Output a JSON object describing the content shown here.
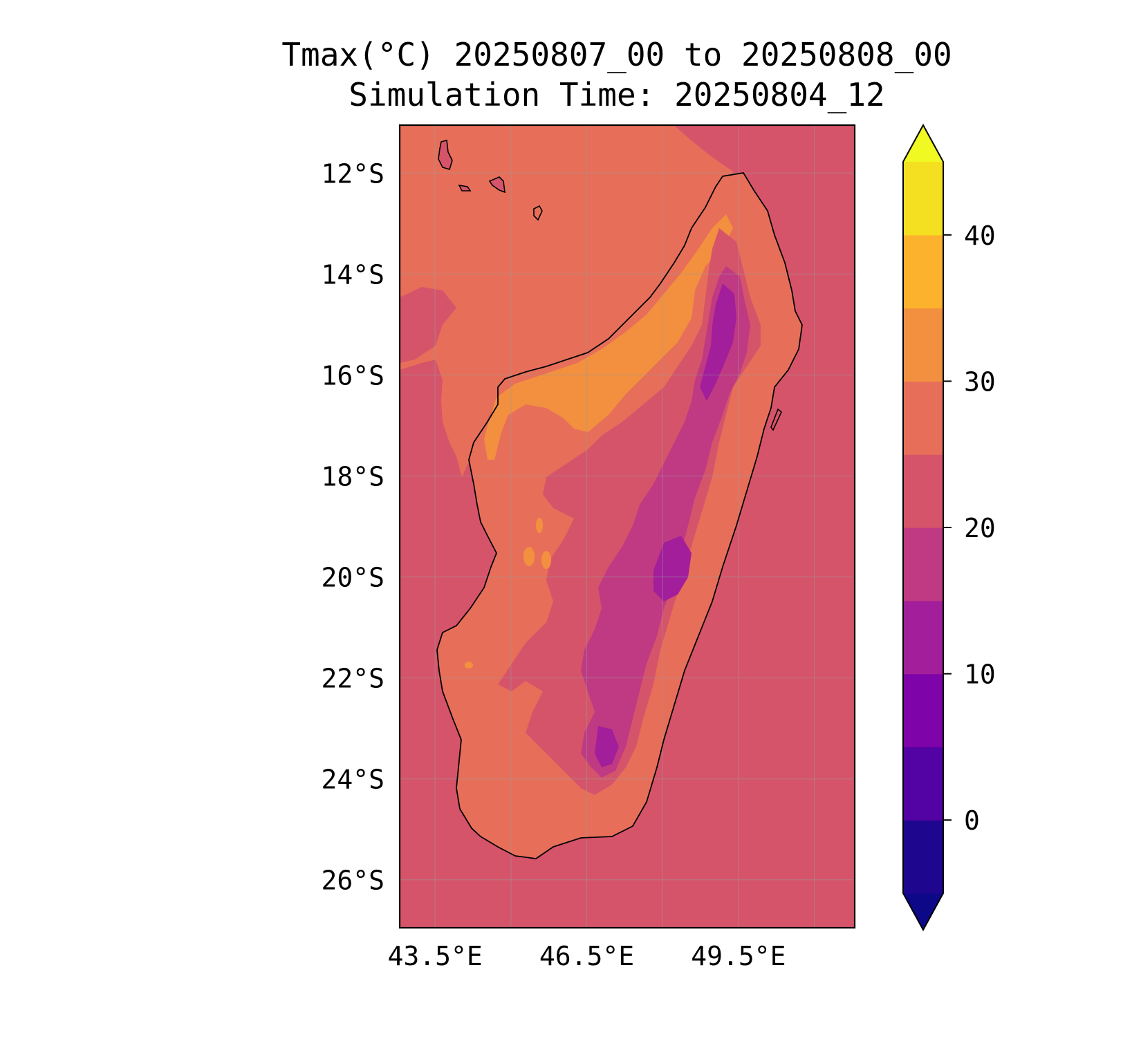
{
  "title": {
    "line1": "Tmax(°C) 20250807_00 to 20250808_00",
    "line2": "Simulation Time: 20250804_12"
  },
  "map": {
    "lon_range": [
      42.8,
      51.8
    ],
    "lat_range": [
      -26.95,
      -11.05
    ],
    "lat_ticks": [
      {
        "value": -12,
        "label": "12°S"
      },
      {
        "value": -14,
        "label": "14°S"
      },
      {
        "value": -16,
        "label": "16°S"
      },
      {
        "value": -18,
        "label": "18°S"
      },
      {
        "value": -20,
        "label": "20°S"
      },
      {
        "value": -22,
        "label": "22°S"
      },
      {
        "value": -24,
        "label": "24°S"
      },
      {
        "value": -26,
        "label": "26°S"
      }
    ],
    "lon_ticks": [
      {
        "value": 43.5,
        "label": "43.5°E"
      },
      {
        "value": 46.5,
        "label": "46.5°E"
      },
      {
        "value": 49.5,
        "label": "49.5°E"
      }
    ],
    "minor_lon_gridlines": [
      45.0,
      48.0,
      51.0
    ],
    "ocean_band_c": "20-25",
    "warm_sea_band_c": "25-30"
  },
  "colorbar": {
    "extend": "both",
    "ticks": [
      {
        "value": 0,
        "label": "0"
      },
      {
        "value": 10,
        "label": "10"
      },
      {
        "value": 20,
        "label": "20"
      },
      {
        "value": 30,
        "label": "30"
      },
      {
        "value": 40,
        "label": "40"
      }
    ],
    "levels": [
      -5,
      0,
      5,
      10,
      15,
      20,
      25,
      30,
      35,
      40,
      45
    ],
    "colors": [
      "#1f068f",
      "#5302a3",
      "#7e03a8",
      "#a31e9a",
      "#c03a83",
      "#d6546a",
      "#e76f5a",
      "#f2903f",
      "#fcb22c",
      "#f5df21"
    ],
    "under_color": "#0d0887",
    "over_color": "#f0f921"
  }
}
